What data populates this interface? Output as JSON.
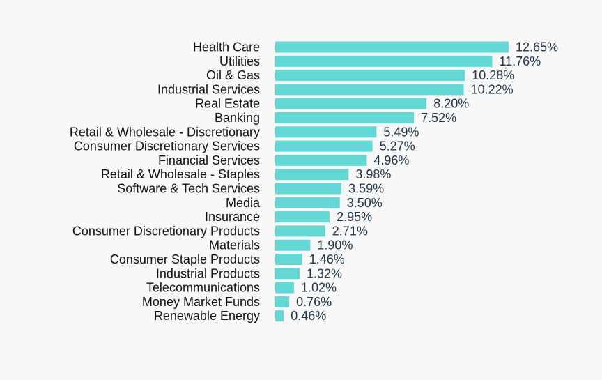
{
  "chart_data": {
    "type": "bar",
    "orientation": "horizontal",
    "title": "",
    "xlabel": "",
    "ylabel": "",
    "categories": [
      "Health Care",
      "Utilities",
      "Oil & Gas",
      "Industrial Services",
      "Real Estate",
      "Banking",
      "Retail & Wholesale - Discretionary",
      "Consumer Discretionary Services",
      "Financial Services",
      "Retail & Wholesale - Staples",
      "Software & Tech Services",
      "Media",
      "Insurance",
      "Consumer Discretionary Products",
      "Materials",
      "Consumer Staple Products",
      "Industrial Products",
      "Telecommunications",
      "Money Market Funds",
      "Renewable Energy"
    ],
    "values": [
      12.65,
      11.76,
      10.28,
      10.22,
      8.2,
      7.52,
      5.49,
      5.27,
      4.96,
      3.98,
      3.59,
      3.5,
      2.95,
      2.71,
      1.9,
      1.46,
      1.32,
      1.02,
      0.76,
      0.46
    ],
    "value_labels": [
      "12.65%",
      "11.76%",
      "10.28%",
      "10.22%",
      "8.20%",
      "7.52%",
      "5.49%",
      "5.27%",
      "4.96%",
      "3.98%",
      "3.59%",
      "3.50%",
      "2.95%",
      "2.71%",
      "1.90%",
      "1.46%",
      "1.32%",
      "1.02%",
      "0.76%",
      "0.46%"
    ],
    "unit": "%",
    "xlim": [
      0,
      12.65
    ],
    "grid": false,
    "legend": "none",
    "colors": {
      "bar": "#63d8d5",
      "category_text": "#111111",
      "value_text": "#22344a",
      "background": "#f8f8f8"
    }
  }
}
